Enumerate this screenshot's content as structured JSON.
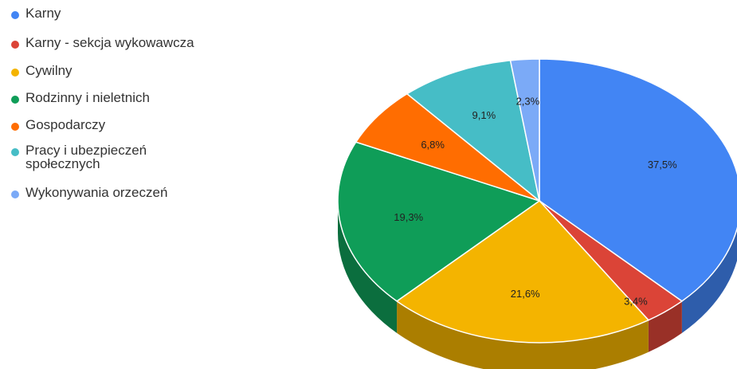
{
  "chart_data": {
    "type": "pie",
    "title": "",
    "legend_position": "left",
    "three_d": true,
    "categories": [
      "Karny",
      "Karny - sekcja wykowawcza",
      "Cywilny",
      "Rodzinny i nieletnich",
      "Gospodarczy",
      "Pracy i ubezpieczeń społecznych",
      "Wykonywania orzeczeń"
    ],
    "values": [
      37.5,
      3.4,
      21.6,
      19.3,
      6.8,
      9.1,
      2.3
    ],
    "value_labels": [
      "37,5%",
      "3,4%",
      "21,6%",
      "19,3%",
      "6,8%",
      "9,1%",
      "2,3%"
    ],
    "colors": [
      "#4285f4",
      "#db4437",
      "#f4b400",
      "#0f9d58",
      "#ff6d01",
      "#46bdc6",
      "#7baaf7"
    ]
  }
}
